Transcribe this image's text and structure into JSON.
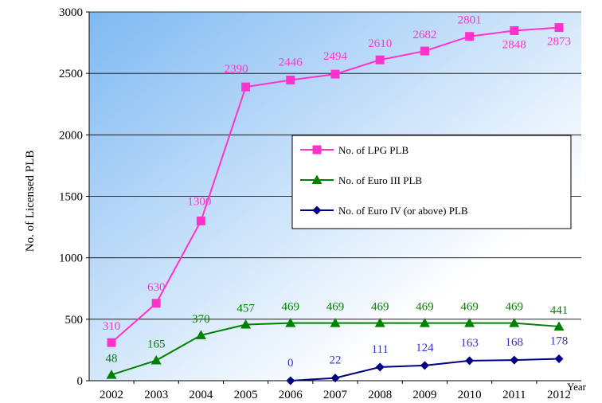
{
  "chart_data": {
    "type": "line",
    "title": "",
    "ylabel": "No. of Licensed PLB",
    "xlabel": "Year",
    "categories": [
      "2002",
      "2003",
      "2004",
      "2005",
      "2006",
      "2007",
      "2008",
      "2009",
      "2010",
      "2011",
      "2012"
    ],
    "ylim": [
      0,
      3000
    ],
    "yticks": [
      0,
      500,
      1000,
      1500,
      2000,
      2500,
      3000
    ],
    "grid": "horizontal",
    "legend_position": "center-right",
    "background_gradient": [
      "#7fb9f2",
      "#ffffff"
    ],
    "series": [
      {
        "name": "No. of LPG PLB",
        "color": "#ff33cc",
        "marker": "square",
        "values": [
          310,
          630,
          1300,
          2390,
          2446,
          2494,
          2610,
          2682,
          2801,
          2848,
          2873
        ],
        "labels": [
          "310",
          "630",
          "1300",
          "2390",
          "2446",
          "2494",
          "2610",
          "2682",
          "2801",
          "2848",
          "2873"
        ]
      },
      {
        "name": "No. of Euro III PLB",
        "color": "#008000",
        "marker": "triangle",
        "values": [
          48,
          165,
          370,
          457,
          469,
          469,
          469,
          469,
          469,
          469,
          441
        ],
        "labels": [
          "48",
          "165",
          "370",
          "457",
          "469",
          "469",
          "469",
          "469",
          "469",
          "469",
          "441"
        ]
      },
      {
        "name": "No. of Euro IV (or above) PLB",
        "color": "#000080",
        "label_color": "#3333cc",
        "marker": "diamond",
        "values": [
          null,
          null,
          null,
          null,
          0,
          22,
          111,
          124,
          163,
          168,
          178
        ],
        "labels": [
          null,
          null,
          null,
          null,
          "0",
          "22",
          "111",
          "124",
          "163",
          "168",
          "178"
        ]
      }
    ]
  }
}
